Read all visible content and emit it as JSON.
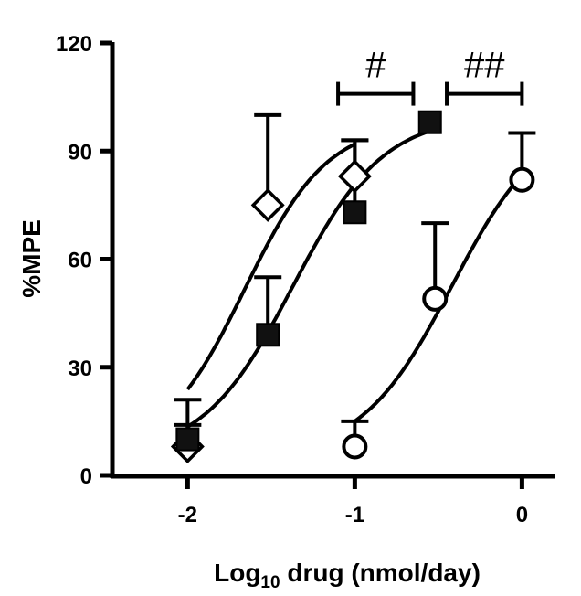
{
  "chart_data": {
    "type": "scatter",
    "title": "",
    "xlabel": {
      "prefix": "Log",
      "sub": "10",
      "suffix": " drug (nmol/day)"
    },
    "ylabel": "%MPE",
    "xlim": [
      -2.45,
      0.2
    ],
    "ylim": [
      0,
      120
    ],
    "xticks": [
      -2,
      -1,
      0
    ],
    "xtick_labels": [
      "-2",
      "-1",
      "0"
    ],
    "yticks": [
      0,
      30,
      60,
      90,
      120
    ],
    "ytick_labels": [
      "0",
      "30",
      "60",
      "90",
      "120"
    ],
    "grid": false,
    "legend": "none",
    "series": [
      {
        "marker": "diamond-open",
        "x": [
          -2,
          -1.52,
          -1
        ],
        "y": [
          8,
          75,
          83
        ],
        "err_upper": [
          21,
          100,
          93
        ],
        "fit": {
          "bottom": 5,
          "top": 98,
          "log_ec50": -1.66,
          "hill": 1.75,
          "x_range": [
            -2,
            -1
          ]
        }
      },
      {
        "marker": "square-filled",
        "x": [
          -2,
          -1.52,
          -1,
          -0.55
        ],
        "y": [
          10,
          39,
          73,
          98
        ],
        "err_upper": [
          14,
          55,
          93,
          98
        ],
        "fit": {
          "bottom": 5,
          "top": 100,
          "log_ec50": -1.37,
          "hill": 1.6,
          "x_range": [
            -2,
            -0.55
          ]
        }
      },
      {
        "marker": "circle-open",
        "x": [
          -1,
          -0.52,
          0
        ],
        "y": [
          8,
          49,
          82
        ],
        "err_upper": [
          15,
          70,
          95
        ],
        "fit": {
          "bottom": 5,
          "top": 100,
          "log_ec50": -0.42,
          "hill": 1.6,
          "x_range": [
            -1,
            0
          ]
        }
      }
    ],
    "annotations": [
      {
        "text": "#",
        "x_from": -1.1,
        "x_to": -0.65,
        "y": 113
      },
      {
        "text": "##",
        "x_from": -0.45,
        "x_to": 0,
        "y": 113
      }
    ]
  }
}
